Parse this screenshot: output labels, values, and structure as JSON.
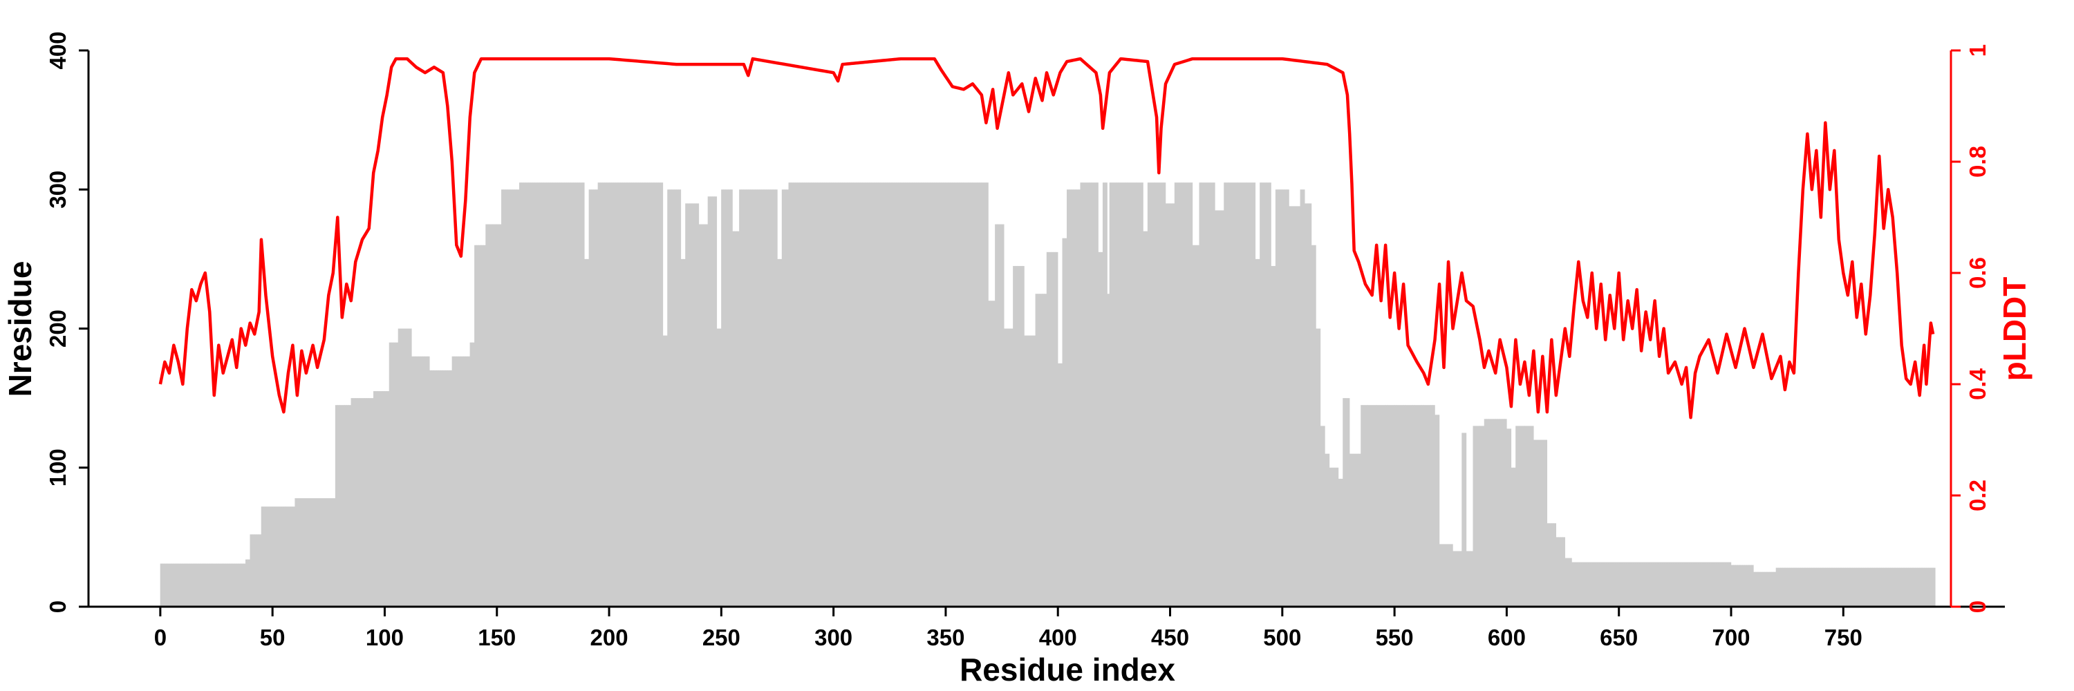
{
  "chart_data": {
    "type": "bar+line",
    "title": "",
    "xlabel": "Residue index",
    "ylabel_left": "Nresidue",
    "ylabel_right": "pLDDT",
    "xlim": [
      -32,
      822
    ],
    "ylim_left": [
      0,
      400
    ],
    "ylim_right": [
      0,
      1
    ],
    "x_ticks": [
      0,
      50,
      100,
      150,
      200,
      250,
      300,
      350,
      400,
      450,
      500,
      550,
      600,
      650,
      700,
      750
    ],
    "y_ticks_left": [
      0,
      100,
      200,
      300,
      400
    ],
    "y_ticks_right": [
      0,
      0.2,
      0.4,
      0.6,
      0.8,
      1
    ],
    "colors": {
      "bars": "#cccccc",
      "line": "#ff0000",
      "axis": "#000000",
      "right_axis": "#ff0000"
    },
    "grid": false,
    "series": [
      {
        "kind": "bar",
        "axis": "left",
        "step": 1,
        "breakpoints": [
          [
            0,
            31
          ],
          [
            38,
            34
          ],
          [
            40,
            52
          ],
          [
            45,
            72
          ],
          [
            60,
            78
          ],
          [
            78,
            145
          ],
          [
            85,
            150
          ],
          [
            95,
            155
          ],
          [
            102,
            190
          ],
          [
            106,
            200
          ],
          [
            112,
            180
          ],
          [
            120,
            170
          ],
          [
            130,
            180
          ],
          [
            138,
            190
          ],
          [
            140,
            260
          ],
          [
            145,
            275
          ],
          [
            152,
            300
          ],
          [
            160,
            305
          ],
          [
            188,
            305
          ],
          [
            189,
            250
          ],
          [
            191,
            300
          ],
          [
            195,
            305
          ],
          [
            223,
            305
          ],
          [
            224,
            195
          ],
          [
            226,
            300
          ],
          [
            232,
            250
          ],
          [
            234,
            290
          ],
          [
            240,
            275
          ],
          [
            244,
            295
          ],
          [
            248,
            200
          ],
          [
            250,
            300
          ],
          [
            255,
            270
          ],
          [
            258,
            300
          ],
          [
            275,
            250
          ],
          [
            277,
            300
          ],
          [
            280,
            305
          ],
          [
            368,
            305
          ],
          [
            369,
            220
          ],
          [
            372,
            275
          ],
          [
            376,
            200
          ],
          [
            380,
            245
          ],
          [
            385,
            195
          ],
          [
            390,
            225
          ],
          [
            395,
            255
          ],
          [
            400,
            175
          ],
          [
            402,
            265
          ],
          [
            404,
            300
          ],
          [
            410,
            305
          ],
          [
            418,
            255
          ],
          [
            420,
            305
          ],
          [
            422,
            225
          ],
          [
            423,
            305
          ],
          [
            438,
            270
          ],
          [
            440,
            305
          ],
          [
            448,
            290
          ],
          [
            452,
            305
          ],
          [
            460,
            260
          ],
          [
            463,
            305
          ],
          [
            470,
            285
          ],
          [
            474,
            305
          ],
          [
            488,
            250
          ],
          [
            490,
            305
          ],
          [
            495,
            245
          ],
          [
            497,
            300
          ],
          [
            503,
            288
          ],
          [
            508,
            300
          ],
          [
            510,
            290
          ],
          [
            513,
            260
          ],
          [
            515,
            200
          ],
          [
            517,
            130
          ],
          [
            519,
            110
          ],
          [
            521,
            100
          ],
          [
            525,
            92
          ],
          [
            527,
            150
          ],
          [
            530,
            110
          ],
          [
            535,
            145
          ],
          [
            568,
            138
          ],
          [
            570,
            45
          ],
          [
            576,
            40
          ],
          [
            580,
            125
          ],
          [
            582,
            40
          ],
          [
            585,
            130
          ],
          [
            590,
            135
          ],
          [
            600,
            128
          ],
          [
            602,
            100
          ],
          [
            604,
            130
          ],
          [
            612,
            120
          ],
          [
            618,
            60
          ],
          [
            622,
            50
          ],
          [
            626,
            35
          ],
          [
            629,
            32
          ],
          [
            700,
            30
          ],
          [
            710,
            25
          ],
          [
            720,
            28
          ],
          [
            790,
            28
          ]
        ]
      },
      {
        "kind": "line",
        "axis": "right",
        "name": "pLDDT",
        "breakpoints": [
          [
            0,
            0.4
          ],
          [
            2,
            0.44
          ],
          [
            4,
            0.42
          ],
          [
            6,
            0.47
          ],
          [
            8,
            0.44
          ],
          [
            10,
            0.4
          ],
          [
            12,
            0.5
          ],
          [
            14,
            0.57
          ],
          [
            16,
            0.55
          ],
          [
            18,
            0.58
          ],
          [
            20,
            0.6
          ],
          [
            22,
            0.53
          ],
          [
            24,
            0.38
          ],
          [
            26,
            0.47
          ],
          [
            28,
            0.42
          ],
          [
            30,
            0.45
          ],
          [
            32,
            0.48
          ],
          [
            34,
            0.43
          ],
          [
            36,
            0.5
          ],
          [
            38,
            0.47
          ],
          [
            40,
            0.51
          ],
          [
            42,
            0.49
          ],
          [
            44,
            0.53
          ],
          [
            45,
            0.66
          ],
          [
            47,
            0.56
          ],
          [
            50,
            0.45
          ],
          [
            53,
            0.38
          ],
          [
            55,
            0.35
          ],
          [
            57,
            0.42
          ],
          [
            59,
            0.47
          ],
          [
            61,
            0.38
          ],
          [
            63,
            0.46
          ],
          [
            65,
            0.42
          ],
          [
            68,
            0.47
          ],
          [
            70,
            0.43
          ],
          [
            73,
            0.48
          ],
          [
            75,
            0.56
          ],
          [
            77,
            0.6
          ],
          [
            79,
            0.7
          ],
          [
            81,
            0.52
          ],
          [
            83,
            0.58
          ],
          [
            85,
            0.55
          ],
          [
            87,
            0.62
          ],
          [
            90,
            0.66
          ],
          [
            93,
            0.68
          ],
          [
            95,
            0.78
          ],
          [
            97,
            0.82
          ],
          [
            99,
            0.88
          ],
          [
            101,
            0.92
          ],
          [
            103,
            0.97
          ],
          [
            105,
            0.985
          ],
          [
            110,
            0.985
          ],
          [
            114,
            0.97
          ],
          [
            118,
            0.96
          ],
          [
            122,
            0.97
          ],
          [
            126,
            0.96
          ],
          [
            128,
            0.9
          ],
          [
            130,
            0.8
          ],
          [
            132,
            0.65
          ],
          [
            134,
            0.63
          ],
          [
            136,
            0.73
          ],
          [
            138,
            0.88
          ],
          [
            140,
            0.96
          ],
          [
            143,
            0.985
          ],
          [
            200,
            0.985
          ],
          [
            230,
            0.975
          ],
          [
            260,
            0.975
          ],
          [
            262,
            0.955
          ],
          [
            264,
            0.985
          ],
          [
            300,
            0.96
          ],
          [
            302,
            0.945
          ],
          [
            304,
            0.975
          ],
          [
            330,
            0.985
          ],
          [
            345,
            0.985
          ],
          [
            348,
            0.965
          ],
          [
            353,
            0.935
          ],
          [
            358,
            0.93
          ],
          [
            362,
            0.94
          ],
          [
            366,
            0.92
          ],
          [
            368,
            0.87
          ],
          [
            371,
            0.93
          ],
          [
            373,
            0.86
          ],
          [
            375,
            0.9
          ],
          [
            378,
            0.96
          ],
          [
            380,
            0.92
          ],
          [
            384,
            0.94
          ],
          [
            387,
            0.89
          ],
          [
            390,
            0.95
          ],
          [
            393,
            0.91
          ],
          [
            395,
            0.96
          ],
          [
            398,
            0.92
          ],
          [
            401,
            0.96
          ],
          [
            404,
            0.98
          ],
          [
            410,
            0.985
          ],
          [
            417,
            0.96
          ],
          [
            419,
            0.92
          ],
          [
            420,
            0.86
          ],
          [
            423,
            0.96
          ],
          [
            428,
            0.985
          ],
          [
            440,
            0.98
          ],
          [
            444,
            0.88
          ],
          [
            445,
            0.78
          ],
          [
            446,
            0.86
          ],
          [
            448,
            0.94
          ],
          [
            452,
            0.975
          ],
          [
            460,
            0.985
          ],
          [
            500,
            0.985
          ],
          [
            520,
            0.975
          ],
          [
            527,
            0.96
          ],
          [
            529,
            0.92
          ],
          [
            530,
            0.85
          ],
          [
            531,
            0.76
          ],
          [
            532,
            0.64
          ],
          [
            534,
            0.62
          ],
          [
            537,
            0.58
          ],
          [
            540,
            0.56
          ],
          [
            542,
            0.65
          ],
          [
            544,
            0.55
          ],
          [
            546,
            0.65
          ],
          [
            548,
            0.52
          ],
          [
            550,
            0.6
          ],
          [
            552,
            0.5
          ],
          [
            554,
            0.58
          ],
          [
            556,
            0.47
          ],
          [
            560,
            0.44
          ],
          [
            563,
            0.42
          ],
          [
            565,
            0.4
          ],
          [
            568,
            0.48
          ],
          [
            570,
            0.58
          ],
          [
            572,
            0.43
          ],
          [
            574,
            0.62
          ],
          [
            576,
            0.5
          ],
          [
            578,
            0.55
          ],
          [
            580,
            0.6
          ],
          [
            582,
            0.55
          ],
          [
            585,
            0.54
          ],
          [
            588,
            0.48
          ],
          [
            590,
            0.43
          ],
          [
            592,
            0.46
          ],
          [
            595,
            0.42
          ],
          [
            597,
            0.48
          ],
          [
            600,
            0.43
          ],
          [
            602,
            0.36
          ],
          [
            604,
            0.48
          ],
          [
            606,
            0.4
          ],
          [
            608,
            0.44
          ],
          [
            610,
            0.38
          ],
          [
            612,
            0.46
          ],
          [
            614,
            0.35
          ],
          [
            616,
            0.45
          ],
          [
            618,
            0.35
          ],
          [
            620,
            0.48
          ],
          [
            622,
            0.38
          ],
          [
            624,
            0.44
          ],
          [
            626,
            0.5
          ],
          [
            628,
            0.45
          ],
          [
            630,
            0.54
          ],
          [
            632,
            0.62
          ],
          [
            634,
            0.55
          ],
          [
            636,
            0.52
          ],
          [
            638,
            0.6
          ],
          [
            640,
            0.5
          ],
          [
            642,
            0.58
          ],
          [
            644,
            0.48
          ],
          [
            646,
            0.56
          ],
          [
            648,
            0.5
          ],
          [
            650,
            0.6
          ],
          [
            652,
            0.48
          ],
          [
            654,
            0.55
          ],
          [
            656,
            0.5
          ],
          [
            658,
            0.57
          ],
          [
            660,
            0.46
          ],
          [
            662,
            0.53
          ],
          [
            664,
            0.48
          ],
          [
            666,
            0.55
          ],
          [
            668,
            0.45
          ],
          [
            670,
            0.5
          ],
          [
            672,
            0.42
          ],
          [
            675,
            0.44
          ],
          [
            678,
            0.4
          ],
          [
            680,
            0.43
          ],
          [
            682,
            0.34
          ],
          [
            684,
            0.42
          ],
          [
            686,
            0.45
          ],
          [
            690,
            0.48
          ],
          [
            694,
            0.42
          ],
          [
            698,
            0.49
          ],
          [
            702,
            0.43
          ],
          [
            706,
            0.5
          ],
          [
            710,
            0.43
          ],
          [
            714,
            0.49
          ],
          [
            718,
            0.41
          ],
          [
            722,
            0.45
          ],
          [
            724,
            0.39
          ],
          [
            726,
            0.44
          ],
          [
            728,
            0.42
          ],
          [
            730,
            0.6
          ],
          [
            732,
            0.75
          ],
          [
            734,
            0.85
          ],
          [
            736,
            0.75
          ],
          [
            738,
            0.82
          ],
          [
            740,
            0.7
          ],
          [
            742,
            0.87
          ],
          [
            744,
            0.75
          ],
          [
            746,
            0.82
          ],
          [
            748,
            0.66
          ],
          [
            750,
            0.6
          ],
          [
            752,
            0.56
          ],
          [
            754,
            0.62
          ],
          [
            756,
            0.52
          ],
          [
            758,
            0.58
          ],
          [
            760,
            0.49
          ],
          [
            762,
            0.56
          ],
          [
            764,
            0.67
          ],
          [
            766,
            0.81
          ],
          [
            768,
            0.68
          ],
          [
            770,
            0.75
          ],
          [
            772,
            0.7
          ],
          [
            774,
            0.6
          ],
          [
            776,
            0.47
          ],
          [
            778,
            0.41
          ],
          [
            780,
            0.4
          ],
          [
            782,
            0.44
          ],
          [
            784,
            0.38
          ],
          [
            786,
            0.47
          ],
          [
            787,
            0.4
          ],
          [
            789,
            0.51
          ],
          [
            790,
            0.49
          ]
        ]
      }
    ]
  }
}
